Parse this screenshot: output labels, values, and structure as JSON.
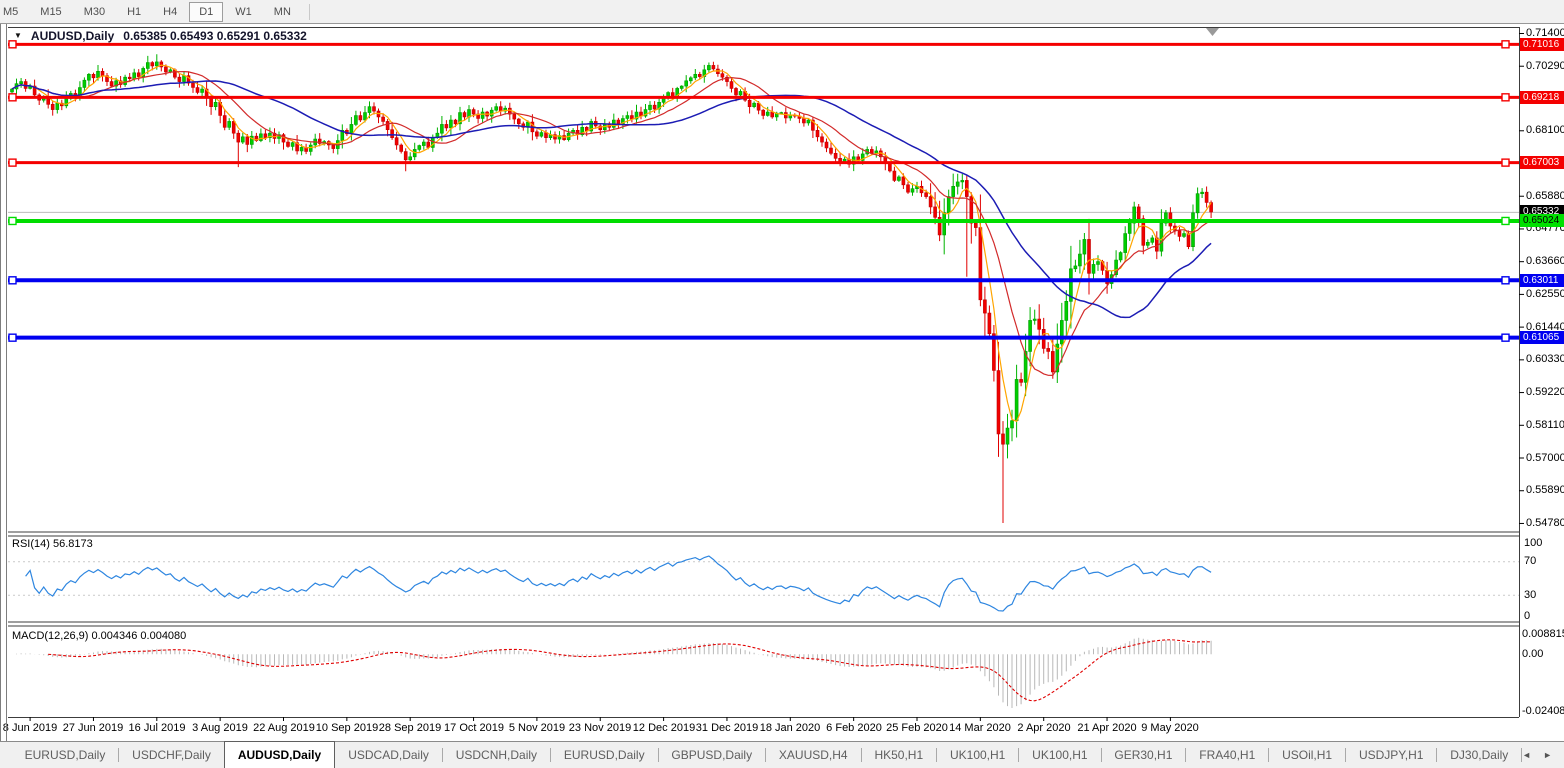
{
  "toolbar": {
    "timeframes": [
      "M5",
      "M15",
      "M30",
      "H1",
      "H4",
      "D1",
      "W1",
      "MN"
    ],
    "active": "D1"
  },
  "chart_header": {
    "dropdown_icon": "▼",
    "title": "AUDUSD,Daily",
    "ohlc": "0.65385 0.65493 0.65291 0.65332"
  },
  "price_axis": {
    "ticks": [
      "0.71400",
      "0.70290",
      "0.68100",
      "0.65880",
      "0.64770",
      "0.63660",
      "0.62550",
      "0.61440",
      "0.60330",
      "0.59220",
      "0.58110",
      "0.57000",
      "0.55890",
      "0.54780"
    ],
    "badges": [
      {
        "text": "0.71016",
        "bg": "#f40000",
        "fg": "#ffffff"
      },
      {
        "text": "0.69218",
        "bg": "#f40000",
        "fg": "#ffffff"
      },
      {
        "text": "0.67003",
        "bg": "#f40000",
        "fg": "#ffffff"
      },
      {
        "text": "0.65332",
        "bg": "#000000",
        "fg": "#ffffff"
      },
      {
        "text": "0.65024",
        "bg": "#00e000",
        "fg": "#000000"
      },
      {
        "text": "0.63011",
        "bg": "#0000f0",
        "fg": "#ffffff"
      },
      {
        "text": "0.61065",
        "bg": "#0000f0",
        "fg": "#ffffff"
      }
    ]
  },
  "hlines": [
    {
      "price": 0.71016,
      "color": "#f40000",
      "width": 3
    },
    {
      "price": 0.69218,
      "color": "#f40000",
      "width": 3
    },
    {
      "price": 0.67003,
      "color": "#f40000",
      "width": 3
    },
    {
      "price": 0.65024,
      "color": "#00dd00",
      "width": 4
    },
    {
      "price": 0.63011,
      "color": "#0000f0",
      "width": 4
    },
    {
      "price": 0.61065,
      "color": "#0000f0",
      "width": 4
    }
  ],
  "current_price_line": {
    "price": 0.65332,
    "color": "#bdbdbd",
    "width": 1
  },
  "chart_data": {
    "type": "candlestick",
    "symbol": "AUDUSD",
    "timeframe": "Daily",
    "title": "AUDUSD,Daily",
    "ylim": [
      0.5478,
      0.714
    ],
    "first_open": 0.694,
    "up_color": "#00ce00",
    "down_color": "#f20000",
    "closes": [
      0.695,
      0.6968,
      0.6975,
      0.6952,
      0.696,
      0.693,
      0.6912,
      0.6925,
      0.6898,
      0.688,
      0.6902,
      0.6893,
      0.6918,
      0.6935,
      0.6922,
      0.6955,
      0.698,
      0.7,
      0.6988,
      0.701,
      0.6995,
      0.6975,
      0.696,
      0.6978,
      0.6965,
      0.699,
      0.6985,
      0.7005,
      0.6992,
      0.702,
      0.704,
      0.7028,
      0.7042,
      0.7025,
      0.7008,
      0.7015,
      0.699,
      0.6975,
      0.6995,
      0.697,
      0.6955,
      0.6938,
      0.695,
      0.692,
      0.689,
      0.6905,
      0.686,
      0.682,
      0.684,
      0.68,
      0.677,
      0.6788,
      0.6762,
      0.679,
      0.6775,
      0.6798,
      0.6785,
      0.68,
      0.6782,
      0.6795,
      0.677,
      0.6755,
      0.6768,
      0.674,
      0.6752,
      0.6738,
      0.676,
      0.678,
      0.6765,
      0.6772,
      0.676,
      0.6748,
      0.6775,
      0.681,
      0.6798,
      0.683,
      0.686,
      0.6845,
      0.687,
      0.689,
      0.6875,
      0.6855,
      0.684,
      0.6812,
      0.6785,
      0.676,
      0.6738,
      0.671,
      0.672,
      0.6745,
      0.6758,
      0.677,
      0.6752,
      0.6785,
      0.68,
      0.683,
      0.6818,
      0.6845,
      0.6832,
      0.687,
      0.6855,
      0.688,
      0.6865,
      0.685,
      0.6872,
      0.6858,
      0.6878,
      0.689,
      0.6875,
      0.6885,
      0.6865,
      0.6848,
      0.6832,
      0.682,
      0.6838,
      0.6805,
      0.679,
      0.6802,
      0.6785,
      0.6795,
      0.678,
      0.6792,
      0.6778,
      0.68,
      0.681,
      0.6795,
      0.682,
      0.6808,
      0.684,
      0.6825,
      0.6812,
      0.683,
      0.682,
      0.6845,
      0.6832,
      0.685,
      0.686,
      0.6848,
      0.6872,
      0.6858,
      0.688,
      0.6895,
      0.6882,
      0.6905,
      0.692,
      0.6938,
      0.6925,
      0.6952,
      0.696,
      0.6978,
      0.6988,
      0.7,
      0.6992,
      0.7015,
      0.703,
      0.7018,
      0.7002,
      0.699,
      0.6975,
      0.6952,
      0.693,
      0.6942,
      0.6912,
      0.689,
      0.6902,
      0.6878,
      0.686,
      0.6872,
      0.6855,
      0.6868,
      0.687,
      0.6852,
      0.6862,
      0.6858,
      0.685,
      0.6835,
      0.6845,
      0.681,
      0.6788,
      0.677,
      0.675,
      0.6732,
      0.6715,
      0.67,
      0.6712,
      0.6695,
      0.672,
      0.6708,
      0.673,
      0.6745,
      0.6732,
      0.674,
      0.672,
      0.6698,
      0.6672,
      0.664,
      0.6652,
      0.6625,
      0.66,
      0.6612,
      0.662,
      0.6598,
      0.6585,
      0.655,
      0.6515,
      0.6455,
      0.653,
      0.6585,
      0.662,
      0.6635,
      0.664,
      0.6585,
      0.6495,
      0.648,
      0.6235,
      0.619,
      0.612,
      0.5995,
      0.578,
      0.5745,
      0.58,
      0.5825,
      0.5965,
      0.5955,
      0.606,
      0.6165,
      0.617,
      0.6135,
      0.607,
      0.606,
      0.599,
      0.6085,
      0.6165,
      0.623,
      0.634,
      0.635,
      0.639,
      0.644,
      0.6325,
      0.6355,
      0.6365,
      0.6335,
      0.629,
      0.632,
      0.637,
      0.6395,
      0.646,
      0.6495,
      0.655,
      0.651,
      0.642,
      0.643,
      0.6445,
      0.64,
      0.6495,
      0.653,
      0.6485,
      0.647,
      0.645,
      0.646,
      0.6415,
      0.653,
      0.6595,
      0.66,
      0.6565,
      0.6533
    ],
    "wick_overrides": {
      "32": {
        "h": 0.7068
      },
      "50": {
        "l": 0.6685
      },
      "87": {
        "l": 0.6671
      },
      "154": {
        "h": 0.704
      },
      "205": {
        "l": 0.6434
      },
      "211": {
        "h": 0.666,
        "l": 0.6313
      },
      "214": {
        "l": 0.6213
      },
      "215": {
        "l": 0.6105
      },
      "217": {
        "l": 0.5958
      },
      "218": {
        "l": 0.5702
      },
      "219": {
        "l": 0.5478
      },
      "238": {
        "l": 0.6253
      },
      "262": {
        "h": 0.6616
      }
    },
    "time_labels": [
      {
        "text": "8 Jun 2019",
        "i": 4
      },
      {
        "text": "27 Jun 2019",
        "i": 18
      },
      {
        "text": "16 Jul 2019",
        "i": 32
      },
      {
        "text": "3 Aug 2019",
        "i": 46
      },
      {
        "text": "22 Aug 2019",
        "i": 60
      },
      {
        "text": "10 Sep 2019",
        "i": 74
      },
      {
        "text": "28 Sep 2019",
        "i": 88
      },
      {
        "text": "17 Oct 2019",
        "i": 102
      },
      {
        "text": "5 Nov 2019",
        "i": 116
      },
      {
        "text": "23 Nov 2019",
        "i": 130
      },
      {
        "text": "12 Dec 2019",
        "i": 144
      },
      {
        "text": "31 Dec 2019",
        "i": 158
      },
      {
        "text": "18 Jan 2020",
        "i": 172
      },
      {
        "text": "6 Feb 2020",
        "i": 186
      },
      {
        "text": "25 Feb 2020",
        "i": 200
      },
      {
        "text": "14 Mar 2020",
        "i": 214
      },
      {
        "text": "2 Apr 2020",
        "i": 228
      },
      {
        "text": "21 Apr 2020",
        "i": 242
      },
      {
        "text": "9 May 2020",
        "i": 256
      }
    ],
    "moving_averages": [
      {
        "period": 5,
        "color": "#ffa500"
      },
      {
        "period": 13,
        "color": "#d22b2b"
      },
      {
        "period": 34,
        "color": "#1c1cb4"
      }
    ],
    "rsi": {
      "label": "RSI(14) 56.8173",
      "period": 14,
      "value": "56.8173",
      "axis_labels": [
        "100",
        "70",
        "30",
        "0"
      ],
      "levels": [
        70,
        30
      ],
      "line_color": "#2e86e0"
    },
    "macd": {
      "label": "MACD(12,26,9) 0.004346 0.004080",
      "fast": 12,
      "slow": 26,
      "signal": 9,
      "values": [
        "0.004346",
        "0.004080"
      ],
      "axis_labels": [
        "0.008815",
        "0.00",
        "-0.024082"
      ],
      "hist_color": "#b8b8b8",
      "signal_color": "#e00000"
    }
  },
  "tabs": {
    "items": [
      "EURUSD,Daily",
      "USDCHF,Daily",
      "AUDUSD,Daily",
      "USDCAD,Daily",
      "USDCNH,Daily",
      "EURUSD,Daily",
      "GBPUSD,Daily",
      "XAUUSD,H4",
      "HK50,H1",
      "UK100,H1",
      "UK100,H1",
      "GER30,H1",
      "FRA40,H1",
      "USOil,H1",
      "USDJPY,H1",
      "DJ30,Daily"
    ],
    "active_index": 2,
    "left_arrow": "◄",
    "right_arrow": "►"
  }
}
